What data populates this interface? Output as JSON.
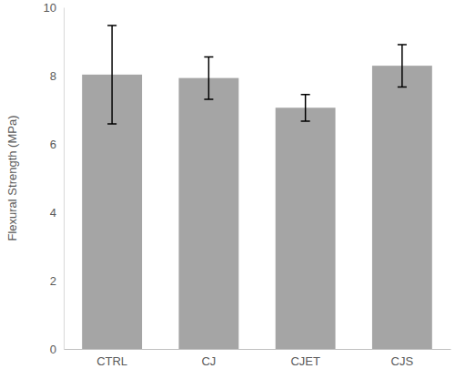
{
  "chart_data": {
    "type": "bar",
    "y_label": "Flexural Strength (MPa)",
    "categories": [
      "CTRL",
      "CJ",
      "CJET",
      "CJS"
    ],
    "values": [
      8.03,
      7.93,
      7.06,
      8.29
    ],
    "errors": [
      1.44,
      0.62,
      0.39,
      0.62
    ],
    "color": "#a5a5a5",
    "ylim": [
      0,
      10
    ],
    "yticks": [
      0,
      2,
      4,
      6,
      8,
      10
    ],
    "grid": false
  }
}
